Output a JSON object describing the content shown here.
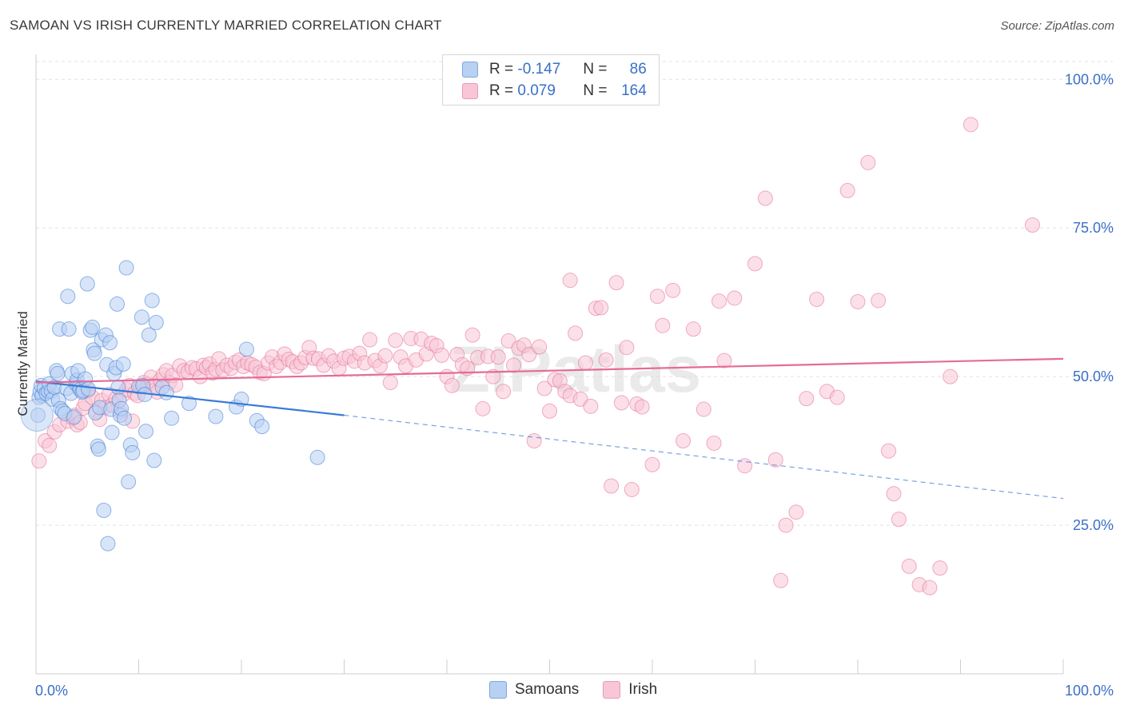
{
  "header": {
    "title": "SAMOAN VS IRISH CURRENTLY MARRIED CORRELATION CHART",
    "source": "Source: ZipAtlas.com"
  },
  "legend": {
    "rows": [
      {
        "r_label": "R =",
        "r_value": "-0.147",
        "n_label": "N =",
        "n_value": "86",
        "color": "#7fa6de"
      },
      {
        "r_label": "R =",
        "r_value": "0.079",
        "n_label": "N =",
        "n_value": "164",
        "color": "#e99ab5"
      }
    ],
    "bottom": [
      {
        "label": "Samoans",
        "color": "#b8d0f2"
      },
      {
        "label": "Irish",
        "color": "#f8c6d6"
      }
    ]
  },
  "watermark": "ZIPatlas",
  "chart_data": {
    "type": "scatter",
    "title": "SAMOAN VS IRISH CURRENTLY MARRIED CORRELATION CHART",
    "xlabel": "",
    "ylabel": "Currently Married",
    "xlim": [
      0,
      100
    ],
    "ylim": [
      0,
      103
    ],
    "x_tick_labels": [
      "0.0%",
      "100.0%"
    ],
    "y_ticks": [
      25,
      50,
      75,
      100
    ],
    "y_tick_labels": [
      "25.0%",
      "50.0%",
      "75.0%",
      "100.0%"
    ],
    "grid": true,
    "legend_position": "top-center",
    "series": [
      {
        "name": "Samoans",
        "color": "#3a7bd5",
        "fill": "#b8d0f2",
        "trend": {
          "x0": 0,
          "y0": 49.2,
          "x1": 30,
          "y1": 43.5,
          "dash_to_x": 100,
          "dash_to_y": 29.5
        },
        "points": [
          [
            0.2,
            43.5
          ],
          [
            0.3,
            46.5
          ],
          [
            0.4,
            47.5
          ],
          [
            0.5,
            48.5
          ],
          [
            0.6,
            46.8
          ],
          [
            0.8,
            48.0
          ],
          [
            1.0,
            47.2
          ],
          [
            1.2,
            47.5
          ],
          [
            1.3,
            48.8
          ],
          [
            1.5,
            47.6
          ],
          [
            1.6,
            46.2
          ],
          [
            1.8,
            48.2
          ],
          [
            2.0,
            51.0
          ],
          [
            2.1,
            50.5
          ],
          [
            2.2,
            46.0
          ],
          [
            2.3,
            58.0
          ],
          [
            2.4,
            44.6
          ],
          [
            2.6,
            44.2
          ],
          [
            2.8,
            43.8
          ],
          [
            3.0,
            48.0
          ],
          [
            3.1,
            63.5
          ],
          [
            3.2,
            58.0
          ],
          [
            3.4,
            47.2
          ],
          [
            3.5,
            50.5
          ],
          [
            3.7,
            43.2
          ],
          [
            3.9,
            48.8
          ],
          [
            4.0,
            49.4
          ],
          [
            4.1,
            51.0
          ],
          [
            4.2,
            48.2
          ],
          [
            4.3,
            47.8
          ],
          [
            4.5,
            47.4
          ],
          [
            4.6,
            47.6
          ],
          [
            4.8,
            49.6
          ],
          [
            5.0,
            65.6
          ],
          [
            5.1,
            47.9
          ],
          [
            5.3,
            57.8
          ],
          [
            5.5,
            58.3
          ],
          [
            5.6,
            54.5
          ],
          [
            5.7,
            53.9
          ],
          [
            5.8,
            43.9
          ],
          [
            6.0,
            38.3
          ],
          [
            6.1,
            37.8
          ],
          [
            6.2,
            44.8
          ],
          [
            6.4,
            56.2
          ],
          [
            6.6,
            27.5
          ],
          [
            6.8,
            57.0
          ],
          [
            6.9,
            52.0
          ],
          [
            7.0,
            21.9
          ],
          [
            7.2,
            55.7
          ],
          [
            7.3,
            44.5
          ],
          [
            7.4,
            40.6
          ],
          [
            7.6,
            50.5
          ],
          [
            7.8,
            51.5
          ],
          [
            7.9,
            62.2
          ],
          [
            8.0,
            48.2
          ],
          [
            8.1,
            46.0
          ],
          [
            8.2,
            43.5
          ],
          [
            8.3,
            44.6
          ],
          [
            8.5,
            52.1
          ],
          [
            8.6,
            43.0
          ],
          [
            8.8,
            68.3
          ],
          [
            9.0,
            32.3
          ],
          [
            9.2,
            38.5
          ],
          [
            9.4,
            37.2
          ],
          [
            10.0,
            48.3
          ],
          [
            10.3,
            60.0
          ],
          [
            10.4,
            48.5
          ],
          [
            10.6,
            47.0
          ],
          [
            10.7,
            40.8
          ],
          [
            11.0,
            57.0
          ],
          [
            11.3,
            62.8
          ],
          [
            11.5,
            35.9
          ],
          [
            11.7,
            59.1
          ],
          [
            12.3,
            48.2
          ],
          [
            12.7,
            47.3
          ],
          [
            13.2,
            43.0
          ],
          [
            14.9,
            45.5
          ],
          [
            17.5,
            43.3
          ],
          [
            19.5,
            44.9
          ],
          [
            20.0,
            46.2
          ],
          [
            20.5,
            54.6
          ],
          [
            21.5,
            42.6
          ],
          [
            22.0,
            41.6
          ],
          [
            27.4,
            36.4
          ]
        ]
      },
      {
        "name": "Irish",
        "color": "#e56b97",
        "fill": "#f8c6d6",
        "trend": {
          "x0": 0,
          "y0": 49.0,
          "x1": 100,
          "y1": 53.0
        },
        "points": [
          [
            0.3,
            35.8
          ],
          [
            0.9,
            39.2
          ],
          [
            1.3,
            38.4
          ],
          [
            1.8,
            40.7
          ],
          [
            2.3,
            41.9
          ],
          [
            3.1,
            42.5
          ],
          [
            3.6,
            43.0
          ],
          [
            3.8,
            43.5
          ],
          [
            4.0,
            41.9
          ],
          [
            4.3,
            42.3
          ],
          [
            4.6,
            44.7
          ],
          [
            4.8,
            45.5
          ],
          [
            5.1,
            47.6
          ],
          [
            5.5,
            46.5
          ],
          [
            5.9,
            44.2
          ],
          [
            6.2,
            42.8
          ],
          [
            6.4,
            46.0
          ],
          [
            6.7,
            44.8
          ],
          [
            7.1,
            47.0
          ],
          [
            7.4,
            45.2
          ],
          [
            7.8,
            46.3
          ],
          [
            8.2,
            44.1
          ],
          [
            8.5,
            47.0
          ],
          [
            8.8,
            47.8
          ],
          [
            9.1,
            48.5
          ],
          [
            9.4,
            42.5
          ],
          [
            9.6,
            47.2
          ],
          [
            9.9,
            46.8
          ],
          [
            10.2,
            48.4
          ],
          [
            10.5,
            49.0
          ],
          [
            10.9,
            48.7
          ],
          [
            11.2,
            49.9
          ],
          [
            11.5,
            48.5
          ],
          [
            11.8,
            47.4
          ],
          [
            12.1,
            49.4
          ],
          [
            12.4,
            50.3
          ],
          [
            12.7,
            51.0
          ],
          [
            13.0,
            49.0
          ],
          [
            13.3,
            50.2
          ],
          [
            13.6,
            48.6
          ],
          [
            14.0,
            51.8
          ],
          [
            14.4,
            51.0
          ],
          [
            14.8,
            50.8
          ],
          [
            15.2,
            51.5
          ],
          [
            15.6,
            51.3
          ],
          [
            16.0,
            50.0
          ],
          [
            16.3,
            51.9
          ],
          [
            16.6,
            51.5
          ],
          [
            16.9,
            52.1
          ],
          [
            17.2,
            50.6
          ],
          [
            17.5,
            51.2
          ],
          [
            17.8,
            53.0
          ],
          [
            18.2,
            51.1
          ],
          [
            18.6,
            51.9
          ],
          [
            19.0,
            51.4
          ],
          [
            19.4,
            52.4
          ],
          [
            19.8,
            52.8
          ],
          [
            20.2,
            51.7
          ],
          [
            20.6,
            52.3
          ],
          [
            21.0,
            52.0
          ],
          [
            21.4,
            51.6
          ],
          [
            21.8,
            50.7
          ],
          [
            22.2,
            50.5
          ],
          [
            22.6,
            52.3
          ],
          [
            23.0,
            53.3
          ],
          [
            23.4,
            51.7
          ],
          [
            23.8,
            52.4
          ],
          [
            24.2,
            53.8
          ],
          [
            24.6,
            52.9
          ],
          [
            25.0,
            52.5
          ],
          [
            25.4,
            51.7
          ],
          [
            25.8,
            52.3
          ],
          [
            26.2,
            53.2
          ],
          [
            26.6,
            54.9
          ],
          [
            27.0,
            53.1
          ],
          [
            27.5,
            53.0
          ],
          [
            28.0,
            51.9
          ],
          [
            28.5,
            53.5
          ],
          [
            29.0,
            52.6
          ],
          [
            29.5,
            51.4
          ],
          [
            30.0,
            53.1
          ],
          [
            30.5,
            53.4
          ],
          [
            31.0,
            52.6
          ],
          [
            31.5,
            53.9
          ],
          [
            32.0,
            52.3
          ],
          [
            32.5,
            56.2
          ],
          [
            33.0,
            52.7
          ],
          [
            33.5,
            51.8
          ],
          [
            34.0,
            53.5
          ],
          [
            34.5,
            49.0
          ],
          [
            35.0,
            56.1
          ],
          [
            35.5,
            53.3
          ],
          [
            36.0,
            51.8
          ],
          [
            36.5,
            56.4
          ],
          [
            37.0,
            52.8
          ],
          [
            37.5,
            56.3
          ],
          [
            38.0,
            53.8
          ],
          [
            38.5,
            55.6
          ],
          [
            39.0,
            55.2
          ],
          [
            39.5,
            53.6
          ],
          [
            40.0,
            50.0
          ],
          [
            40.5,
            48.5
          ],
          [
            41.0,
            53.7
          ],
          [
            41.5,
            52.0
          ],
          [
            42.0,
            51.4
          ],
          [
            42.5,
            57.0
          ],
          [
            43.0,
            53.2
          ],
          [
            43.5,
            44.6
          ],
          [
            44.0,
            53.4
          ],
          [
            44.5,
            50.0
          ],
          [
            45.0,
            53.3
          ],
          [
            45.5,
            47.5
          ],
          [
            46.0,
            56.0
          ],
          [
            46.5,
            51.9
          ],
          [
            47.0,
            54.8
          ],
          [
            47.5,
            55.3
          ],
          [
            48.0,
            53.7
          ],
          [
            48.5,
            39.2
          ],
          [
            49.0,
            55.0
          ],
          [
            49.5,
            48.0
          ],
          [
            50.0,
            44.2
          ],
          [
            50.5,
            49.5
          ],
          [
            51.0,
            49.3
          ],
          [
            51.5,
            47.5
          ],
          [
            52.0,
            46.8
          ],
          [
            52.5,
            57.3
          ],
          [
            53.0,
            46.2
          ],
          [
            53.5,
            52.3
          ],
          [
            54.0,
            45.0
          ],
          [
            54.5,
            61.5
          ],
          [
            55.0,
            61.6
          ],
          [
            55.5,
            52.8
          ],
          [
            56.0,
            31.6
          ],
          [
            57.0,
            45.6
          ],
          [
            57.5,
            54.9
          ],
          [
            58.0,
            31.0
          ],
          [
            58.5,
            45.4
          ],
          [
            59.0,
            44.9
          ],
          [
            60.0,
            35.2
          ],
          [
            61.0,
            58.6
          ],
          [
            62.0,
            64.5
          ],
          [
            63.0,
            39.2
          ],
          [
            64.0,
            58.0
          ],
          [
            65.0,
            44.5
          ],
          [
            66.0,
            38.8
          ],
          [
            67.0,
            52.7
          ],
          [
            68.0,
            63.2
          ],
          [
            69.0,
            35.0
          ],
          [
            70.0,
            69.0
          ],
          [
            71.0,
            80.0
          ],
          [
            72.0,
            36.0
          ],
          [
            73.0,
            25.0
          ],
          [
            74.0,
            27.2
          ],
          [
            75.0,
            46.3
          ],
          [
            76.0,
            63.0
          ],
          [
            77.0,
            47.5
          ],
          [
            78.0,
            46.5
          ],
          [
            79.0,
            81.3
          ],
          [
            80.0,
            62.6
          ],
          [
            81.0,
            86.0
          ],
          [
            82.0,
            62.8
          ],
          [
            83.0,
            37.5
          ],
          [
            83.5,
            30.3
          ],
          [
            84.0,
            26.0
          ],
          [
            85.0,
            18.1
          ],
          [
            86.0,
            15.0
          ],
          [
            87.0,
            14.5
          ],
          [
            89.0,
            50.0
          ],
          [
            91.0,
            92.4
          ],
          [
            97.0,
            75.5
          ],
          [
            88.0,
            17.8
          ],
          [
            72.5,
            15.7
          ],
          [
            52.0,
            66.2
          ],
          [
            56.5,
            65.8
          ],
          [
            60.5,
            63.5
          ],
          [
            66.5,
            62.7
          ]
        ]
      }
    ]
  }
}
